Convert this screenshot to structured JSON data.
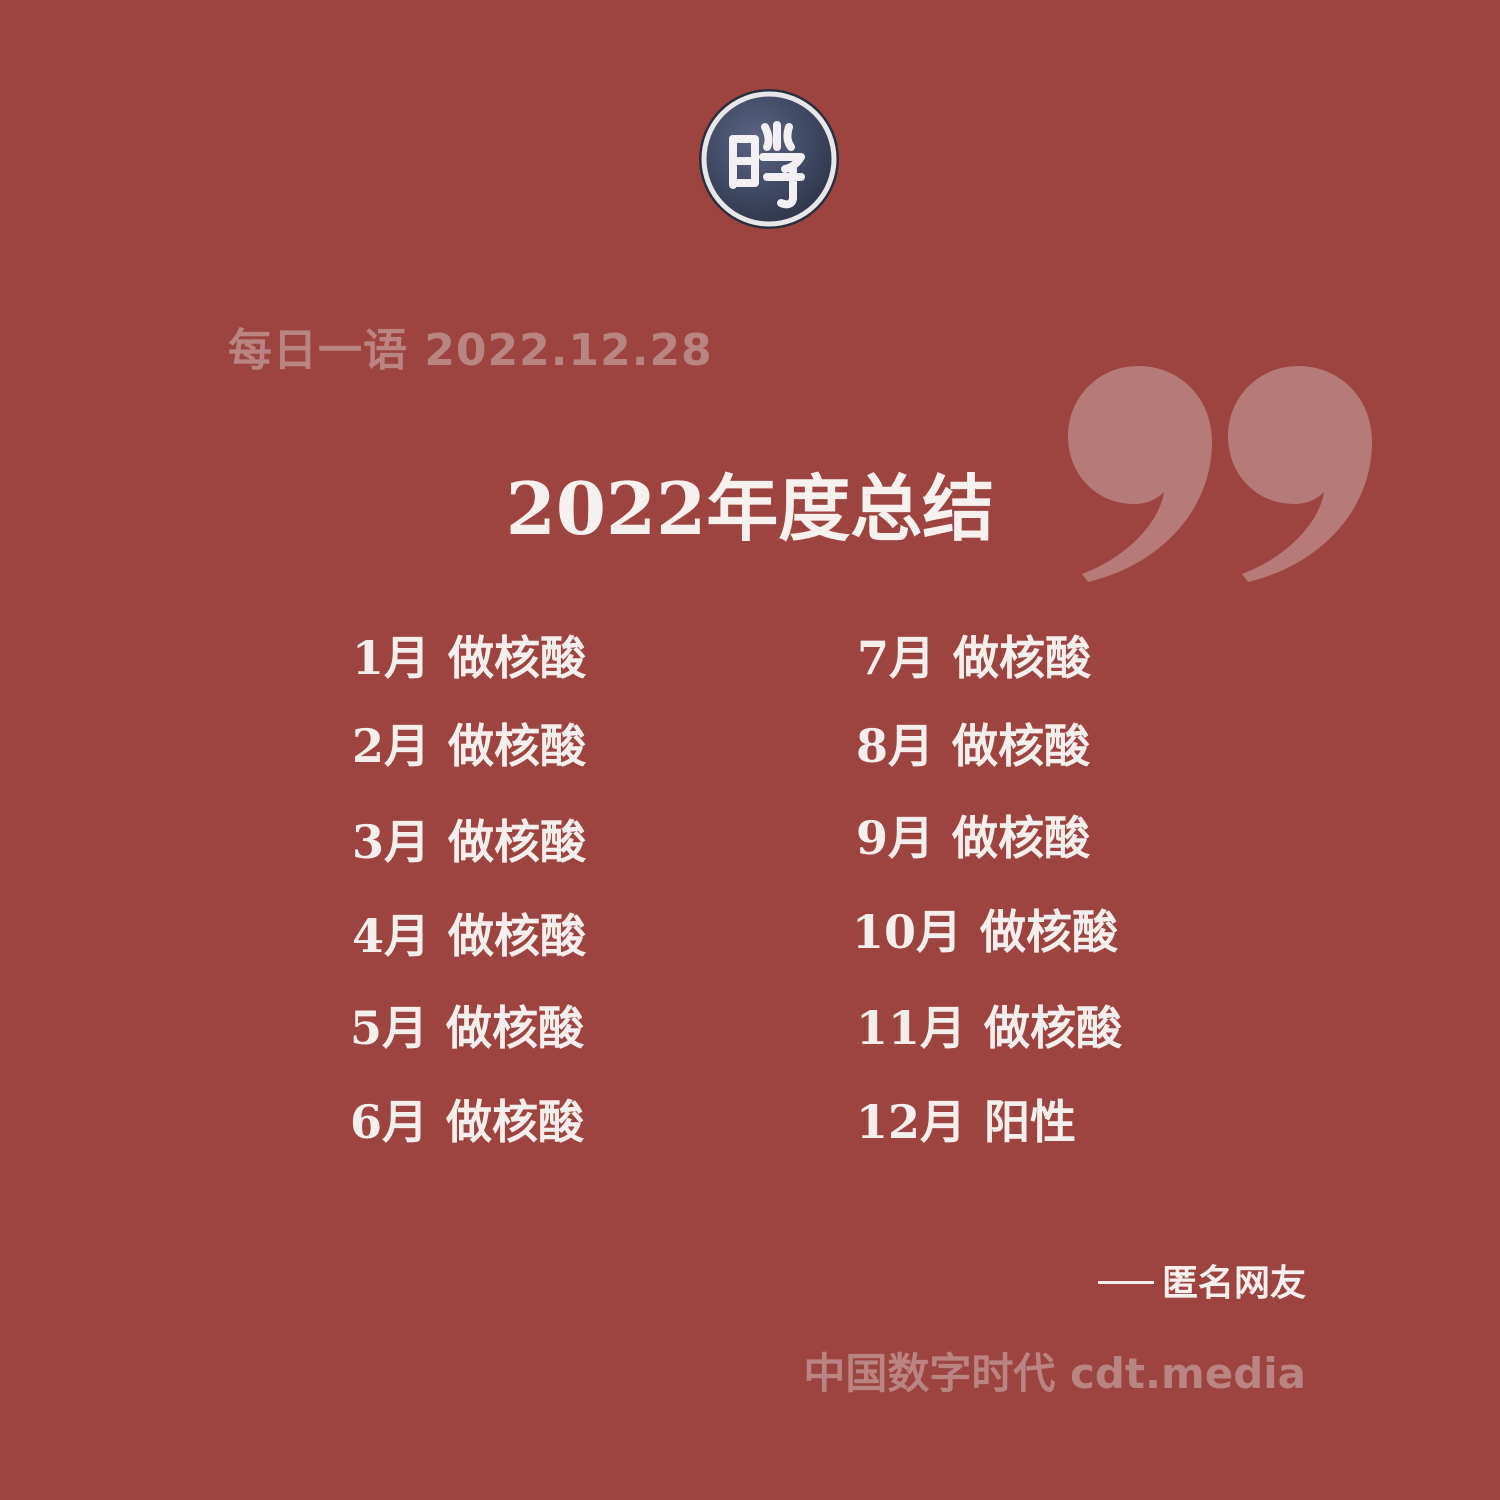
{
  "logo": {
    "glyph": "時"
  },
  "header": {
    "date_line": "每日一语 2022.12.28"
  },
  "title": "2022年度总结",
  "months": [
    {
      "month": "1月",
      "activity": "做核酸"
    },
    {
      "month": "2月",
      "activity": "做核酸"
    },
    {
      "month": "3月",
      "activity": "做核酸"
    },
    {
      "month": "4月",
      "activity": "做核酸"
    },
    {
      "month": "5月",
      "activity": "做核酸"
    },
    {
      "month": "6月",
      "activity": "做核酸"
    },
    {
      "month": "7月",
      "activity": "做核酸"
    },
    {
      "month": "8月",
      "activity": "做核酸"
    },
    {
      "month": "9月",
      "activity": "做核酸"
    },
    {
      "month": "10月",
      "activity": "做核酸"
    },
    {
      "month": "11月",
      "activity": "做核酸"
    },
    {
      "month": "12月",
      "activity": "阳性"
    }
  ],
  "attribution": "匿名网友",
  "footer": "中国数字时代 cdt.media",
  "colors": {
    "background": "#9e4440",
    "text": "#f4eeec",
    "muted_text": "#b98482",
    "quote_mark": "#b67a78",
    "logo_fill": "#3f4862"
  }
}
